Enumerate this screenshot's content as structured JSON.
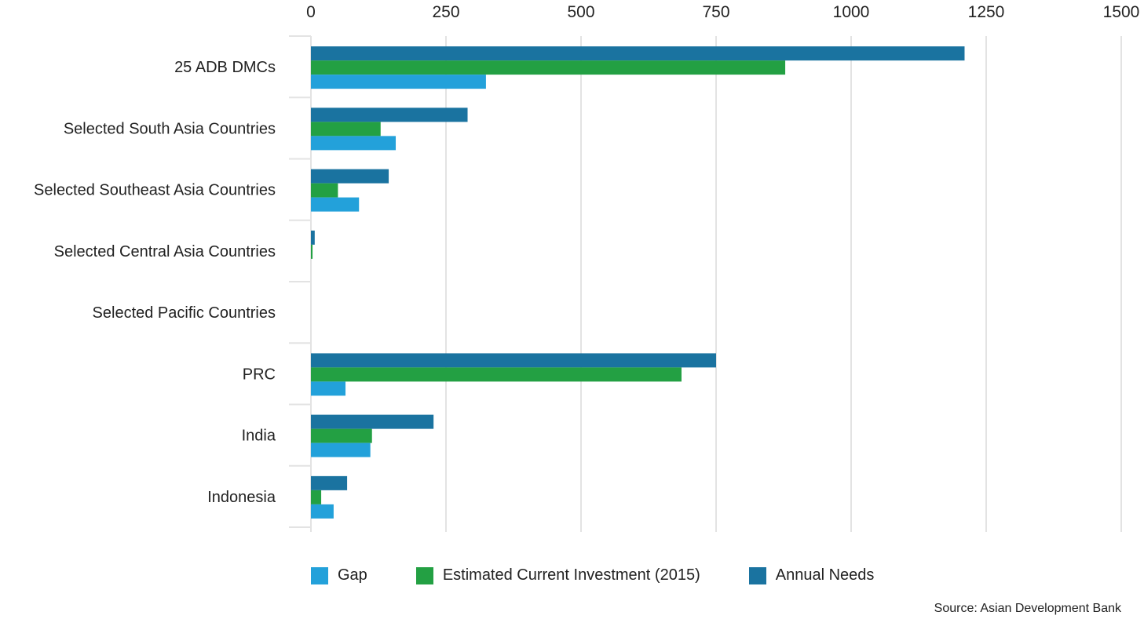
{
  "chart_data": {
    "type": "bar",
    "orientation": "horizontal",
    "categories": [
      "25 ADB DMCs",
      "Selected South Asia Countries",
      "Selected Southeast Asia Countries",
      "Selected Central Asia Countries",
      "Selected Pacific Countries",
      "PRC",
      "India",
      "Indonesia"
    ],
    "series": [
      {
        "name": "Annual Needs",
        "color": "#1a73a0",
        "values": [
          1210,
          290,
          144,
          7,
          0,
          750,
          227,
          67
        ]
      },
      {
        "name": "Estimated Current Investment (2015)",
        "color": "#23a043",
        "values": [
          878,
          129,
          50,
          3,
          0,
          686,
          113,
          19
        ]
      },
      {
        "name": "Gap",
        "color": "#23a1da",
        "values": [
          324,
          157,
          89,
          0,
          0,
          64,
          110,
          42
        ]
      }
    ],
    "x_ticks": [
      "0",
      "250",
      "500",
      "750",
      "1000",
      "1250",
      "1500"
    ],
    "xlim": [
      0,
      1500
    ],
    "grid": true,
    "legend_position": "bottom",
    "title": "",
    "xlabel": "",
    "ylabel": ""
  },
  "legend": [
    {
      "label": "Gap",
      "color": "#23a1da"
    },
    {
      "label": "Estimated Current Investment (2015)",
      "color": "#23a043"
    },
    {
      "label": "Annual Needs",
      "color": "#1a73a0"
    }
  ],
  "source": "Source: Asian Development Bank"
}
